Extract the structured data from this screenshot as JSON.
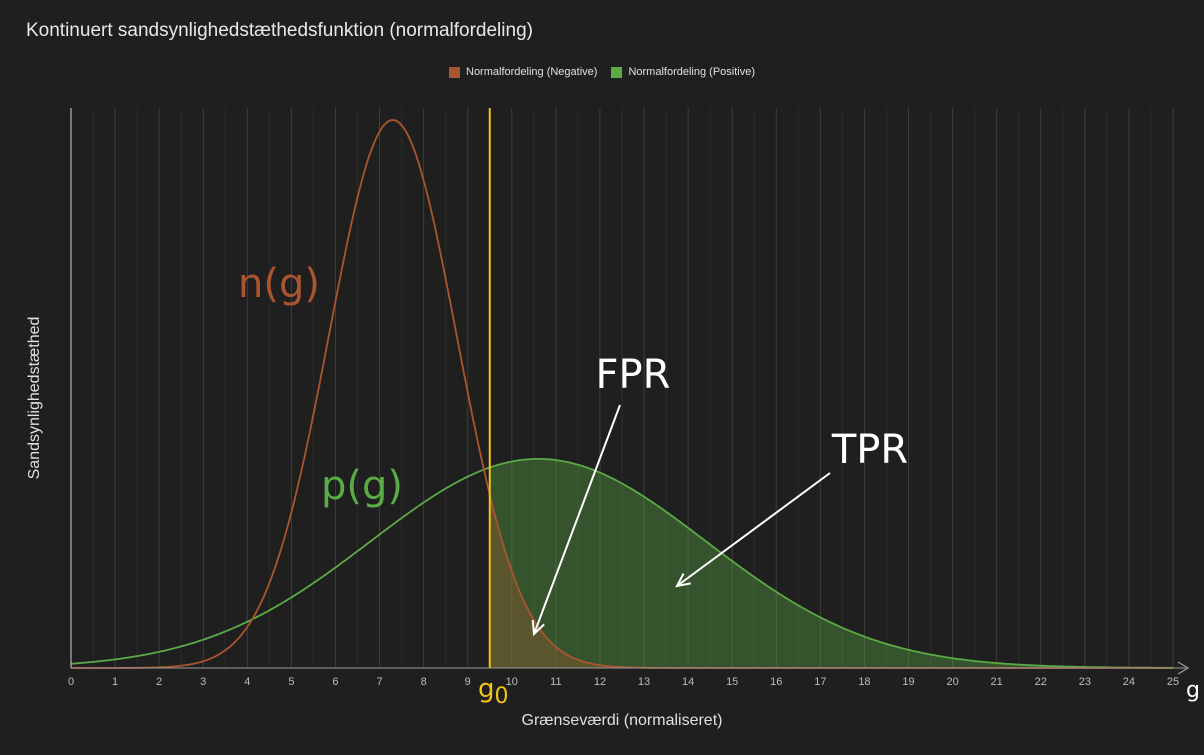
{
  "title": "Kontinuert sandsynlighedstæthedsfunktion (normalfordeling)",
  "legend": [
    {
      "label": "Normalfordeling (Negative)",
      "color": "#a9562f"
    },
    {
      "label": "Normalfordeling (Positive)",
      "color": "#5aaa45"
    }
  ],
  "ylabel": "Sandsynlighedstæthed",
  "xlabel": "Grænseværdi (normaliseret)",
  "chart_data": {
    "type": "area",
    "x_ticks": [
      0,
      1,
      2,
      3,
      4,
      5,
      6,
      7,
      8,
      9,
      10,
      11,
      12,
      13,
      14,
      15,
      16,
      17,
      18,
      19,
      20,
      21,
      22,
      23,
      24,
      25
    ],
    "xlim": [
      0,
      25
    ],
    "grid": true,
    "legend_position": "top-center",
    "threshold": {
      "x": 9.5,
      "label": "g0",
      "color": "#f0c419"
    },
    "axis_end_label": "g",
    "series": [
      {
        "name": "Normalfordeling (Negative)",
        "distribution": "normal",
        "mean": 7.3,
        "sd": 1.45,
        "color": "#a9562f",
        "curve_label": "n(g)"
      },
      {
        "name": "Normalfordeling (Positive)",
        "distribution": "normal",
        "mean": 10.6,
        "sd": 3.8,
        "color": "#5aaa45",
        "curve_label": "p(g)"
      }
    ],
    "annotations": [
      {
        "text": "FPR",
        "color": "#ffffff"
      },
      {
        "text": "TPR",
        "color": "#ffffff"
      }
    ]
  }
}
